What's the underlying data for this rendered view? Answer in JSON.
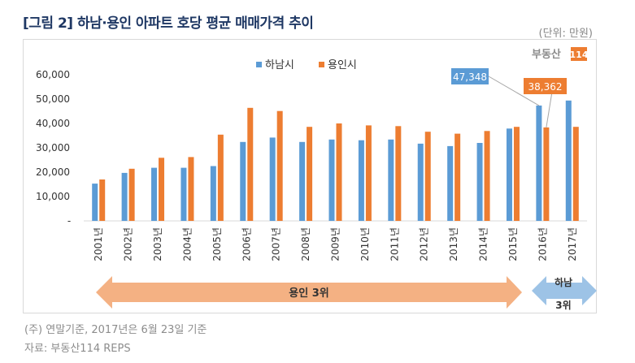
{
  "title": "[그림 2] 하남·용인 아파트 호당 평균 매매가격 추이",
  "unit": "(단위: 만원)",
  "logo": {
    "text": "부동산",
    "badge": "114"
  },
  "notes": [
    "(주) 연말기준, 2017년은 6월 23일 기준",
    "자료: 부동산114 REPS"
  ],
  "arrows": [
    {
      "label": "용인 3위",
      "color": "#F4B183"
    },
    {
      "label_line1": "하남",
      "label_line2": "3위",
      "color": "#9DC3E6"
    }
  ],
  "chart_data": {
    "type": "bar",
    "categories": [
      "2001년",
      "2002년",
      "2003년",
      "2004년",
      "2005년",
      "2006년",
      "2007년",
      "2008년",
      "2009년",
      "2010년",
      "2011년",
      "2012년",
      "2013년",
      "2014년",
      "2015년",
      "2016년",
      "2017년"
    ],
    "series": [
      {
        "name": "하남시",
        "color": "#5B9BD5",
        "values": [
          15300,
          19700,
          21800,
          21800,
          22500,
          32400,
          34200,
          32400,
          33400,
          33100,
          33400,
          31700,
          30700,
          32000,
          37900,
          47348,
          49400
        ]
      },
      {
        "name": "용인시",
        "color": "#ED7D31",
        "values": [
          17000,
          21400,
          25900,
          26200,
          35400,
          46400,
          45100,
          38600,
          40000,
          39200,
          38900,
          36600,
          35800,
          36900,
          38600,
          38362,
          38600
        ]
      }
    ],
    "yticks": [
      "-",
      "10,000",
      "20,000",
      "30,000",
      "40,000",
      "50,000",
      "60,000"
    ],
    "ylim": [
      0,
      60000
    ],
    "grid": false,
    "legend": "top-center",
    "callouts": [
      {
        "series": 0,
        "category": "2016년",
        "text": "47,348"
      },
      {
        "series": 1,
        "category": "2016년",
        "text": "38,362"
      }
    ]
  }
}
